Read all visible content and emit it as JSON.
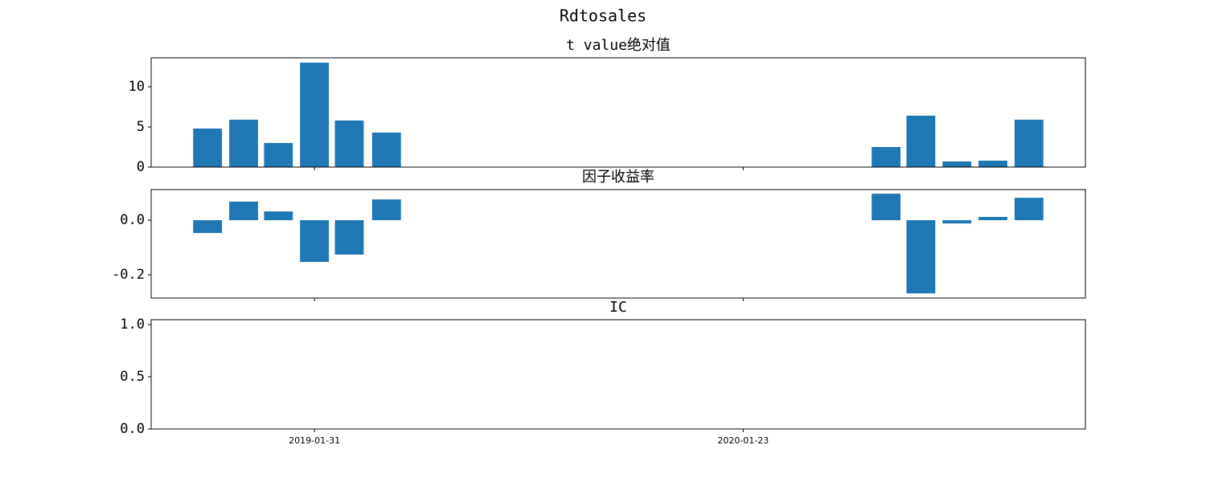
{
  "title": "Rdtosales",
  "chart_data": [
    {
      "type": "bar",
      "title": "t value绝对值",
      "color": "#1f77b4",
      "x": [
        "2018-11-03",
        "2018-12-03",
        "2019-01-01",
        "2019-01-31",
        "2019-03-01",
        "2019-04-01",
        "2020-05-21",
        "2020-06-19",
        "2020-07-19",
        "2020-08-18",
        "2020-09-17"
      ],
      "values": [
        4.8,
        5.9,
        3.0,
        13.0,
        5.8,
        4.3,
        2.5,
        6.4,
        0.7,
        0.8,
        5.9
      ],
      "xlim": [
        "2018-09-17",
        "2020-11-03"
      ],
      "xticks": [
        "2019-01-31",
        "2020-01-23"
      ],
      "ylim": [
        0,
        13.6
      ],
      "yticks": [
        0,
        5,
        10
      ]
    },
    {
      "type": "bar",
      "title": "因子收益率",
      "color": "#1f77b4",
      "x": [
        "2018-11-03",
        "2018-12-03",
        "2019-01-01",
        "2019-01-31",
        "2019-03-01",
        "2019-04-01",
        "2020-05-21",
        "2020-06-19",
        "2020-07-19",
        "2020-08-18",
        "2020-09-17"
      ],
      "values": [
        -0.047,
        0.068,
        0.032,
        -0.153,
        -0.126,
        0.076,
        0.097,
        -0.268,
        -0.012,
        0.012,
        0.082
      ],
      "xlim": [
        "2018-09-17",
        "2020-11-03"
      ],
      "xticks": [
        "2019-01-31",
        "2020-01-23"
      ],
      "ylim": [
        -0.285,
        0.112
      ],
      "yticks": [
        {
          "value": 0,
          "label": "0.0"
        },
        -0.2
      ]
    },
    {
      "type": "bar",
      "title": "IC",
      "color": "#1f77b4",
      "xlim": [
        "2018-09-17",
        "2020-11-03"
      ],
      "xticks": [
        "2019-01-31",
        "2020-01-23"
      ],
      "ylim": [
        0,
        1.046
      ],
      "yticks": [
        {
          "value": 0,
          "label": "0.0"
        },
        0.5,
        {
          "value": 1,
          "label": "1.0"
        }
      ]
    }
  ]
}
